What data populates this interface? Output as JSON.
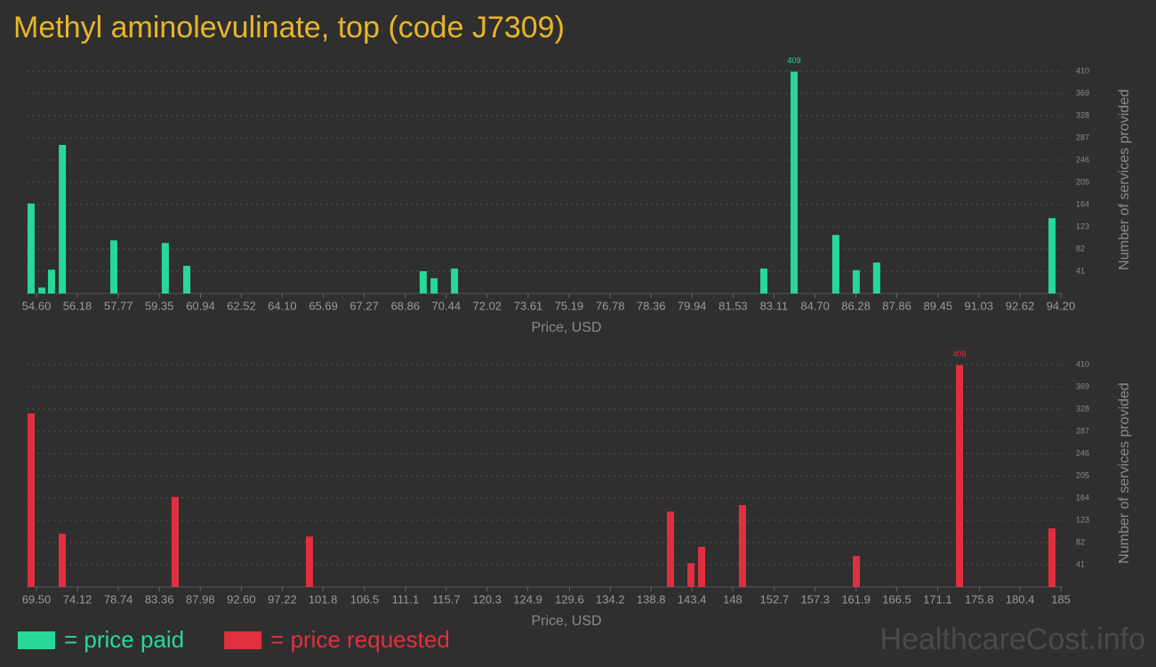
{
  "title": "Methyl aminolevulinate, top (code J7309)",
  "watermark": "HealthcareCost.info",
  "chart_data": [
    {
      "type": "bar",
      "x_label": "Price, USD",
      "y_label": "Number of services provided",
      "x": [
        54.39,
        54.81,
        55.18,
        55.6,
        57.59,
        59.58,
        60.41,
        69.55,
        69.97,
        70.76,
        82.72,
        83.89,
        85.5,
        86.29,
        87.08,
        93.86
      ],
      "series": [
        {
          "name": "= price paid",
          "color": "#27d898",
          "values": [
            166,
            11,
            44,
            274,
            98,
            93,
            51,
            41,
            28,
            46,
            46,
            409,
            108,
            43,
            57,
            139
          ]
        }
      ],
      "xlim": [
        54.22,
        94.27
      ],
      "xticks": [
        {
          "value": 54.6,
          "label": "54.60"
        },
        56.18,
        57.77,
        59.35,
        60.94,
        62.52,
        {
          "value": 64.1,
          "label": "64.10"
        },
        65.69,
        67.27,
        68.86,
        70.44,
        72.02,
        73.61,
        75.19,
        76.78,
        78.36,
        79.94,
        81.53,
        83.11,
        {
          "value": 84.7,
          "label": "84.70"
        },
        86.28,
        87.86,
        89.45,
        91.03,
        92.62,
        {
          "value": 94.2,
          "label": "94.20"
        }
      ],
      "ylim": [
        0,
        410
      ],
      "yticks": [
        41,
        82,
        123,
        164,
        205,
        246,
        287,
        328,
        369,
        410
      ],
      "grid": true
    },
    {
      "type": "bar",
      "x_label": "Price, USD",
      "y_label": "Number of services provided",
      "x": [
        68.9,
        72.41,
        85.14,
        100.28,
        140.99,
        143.29,
        144.5,
        149.1,
        161.94,
        173.57,
        183.99
      ],
      "series": [
        {
          "name": "= price requested",
          "color": "#e0303f",
          "values": [
            320,
            98,
            166,
            93,
            139,
            44,
            74,
            151,
            57,
            409,
            108
          ]
        }
      ],
      "xlim": [
        68.4,
        185.2
      ],
      "xticks": [
        {
          "value": 69.5,
          "label": "69.50"
        },
        74.12,
        78.74,
        83.36,
        87.98,
        {
          "value": 92.6,
          "label": "92.60"
        },
        97.22,
        101.8,
        106.5,
        111.1,
        115.7,
        120.3,
        124.9,
        129.6,
        134.2,
        138.8,
        143.4,
        148,
        152.7,
        157.3,
        161.9,
        166.5,
        171.1,
        175.8,
        180.4,
        185
      ],
      "ylim": [
        0,
        410
      ],
      "yticks": [
        41,
        82,
        123,
        164,
        205,
        246,
        287,
        328,
        369,
        410
      ],
      "grid": true
    }
  ]
}
